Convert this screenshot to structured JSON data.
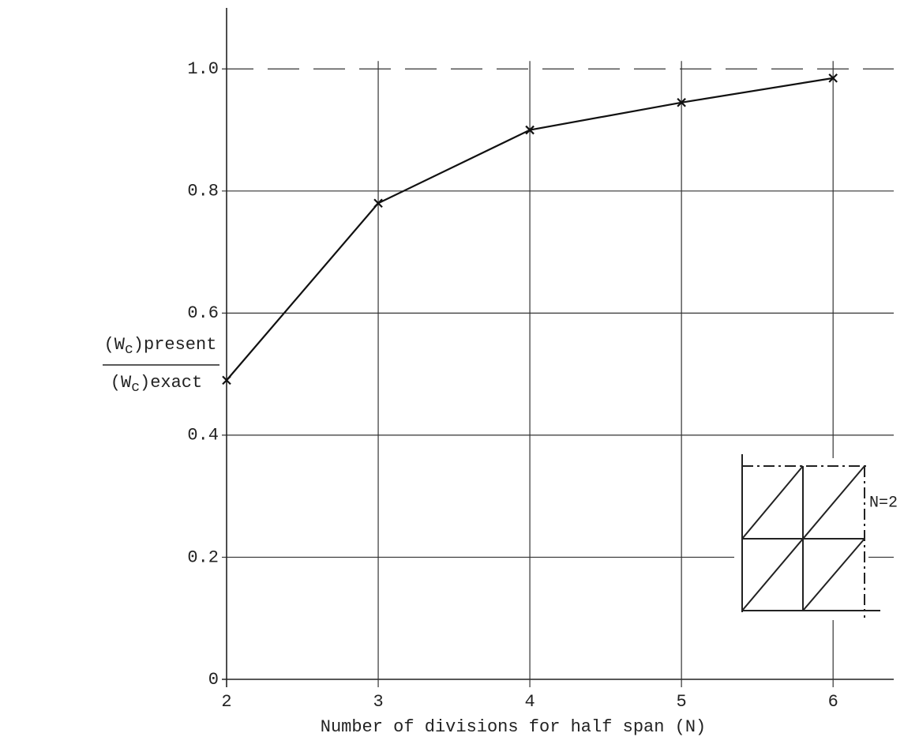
{
  "chart_data": {
    "type": "line",
    "xlabel": "Number of divisions for half span (N)",
    "ylabel": {
      "numerator": [
        "(W",
        "c",
        ")present"
      ],
      "denominator": [
        "(W",
        "c",
        ")exact"
      ]
    },
    "x": [
      2,
      3,
      4,
      5,
      6
    ],
    "values": [
      0.49,
      0.78,
      0.9,
      0.945,
      0.985
    ],
    "color": "#111111",
    "xlim": [
      2,
      6.4
    ],
    "ylim": [
      0,
      1.1
    ],
    "xticks": [
      2,
      3,
      4,
      5,
      6
    ],
    "yticks": [
      0,
      0.2,
      0.4,
      0.6,
      0.8,
      {
        "value": 1,
        "label": "1.0"
      }
    ],
    "grid": true,
    "annotations": [
      "N=2"
    ]
  }
}
